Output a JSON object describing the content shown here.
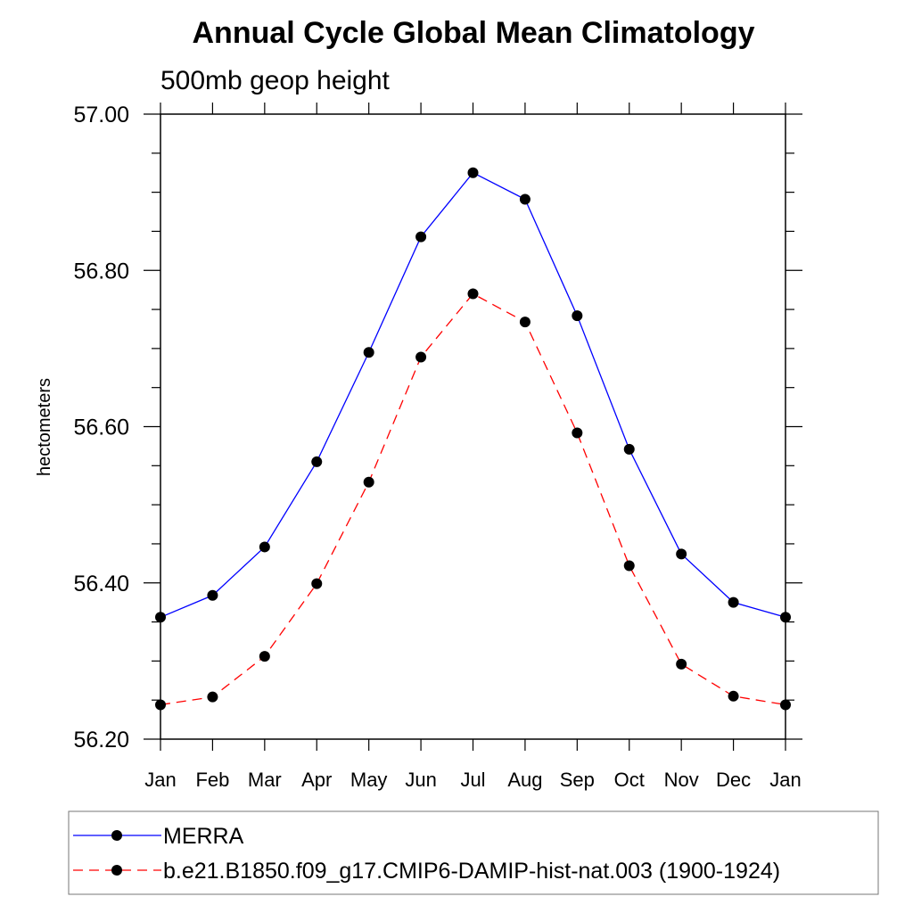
{
  "chart_data": {
    "type": "line",
    "title": "Annual Cycle Global Mean Climatology",
    "subtitle": "500mb geop height",
    "xlabel": "",
    "ylabel": "hectometers",
    "categories": [
      "Jan",
      "Feb",
      "Mar",
      "Apr",
      "May",
      "Jun",
      "Jul",
      "Aug",
      "Sep",
      "Oct",
      "Nov",
      "Dec",
      "Jan"
    ],
    "ylim": [
      56.2,
      57.0
    ],
    "yticks": [
      "56.20",
      "56.40",
      "56.60",
      "56.80",
      "57.00"
    ],
    "grid": false,
    "legend_placement": "bottom",
    "series": [
      {
        "name": "MERRA",
        "color": "#0000ff",
        "dash": "solid",
        "values": [
          56.356,
          56.384,
          56.446,
          56.555,
          56.695,
          56.843,
          56.925,
          56.891,
          56.742,
          56.571,
          56.437,
          56.375,
          56.356
        ]
      },
      {
        "name": "b.e21.B1850.f09_g17.CMIP6-DAMIP-hist-nat.003 (1900-1924)",
        "color": "#ff0000",
        "dash": "dashed",
        "values": [
          56.244,
          56.254,
          56.306,
          56.399,
          56.529,
          56.689,
          56.77,
          56.734,
          56.592,
          56.422,
          56.296,
          56.255,
          56.244
        ]
      }
    ]
  }
}
